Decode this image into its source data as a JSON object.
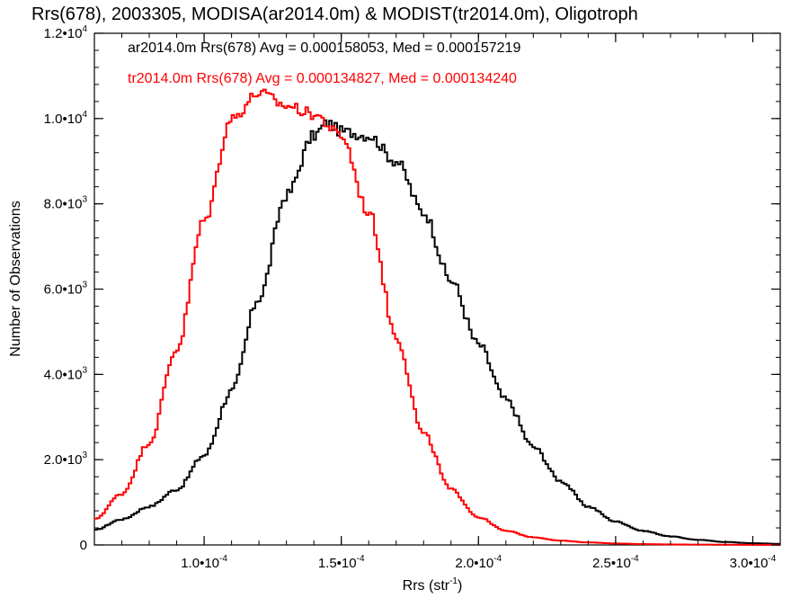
{
  "chart_data": {
    "type": "line",
    "title": "Rrs(678), 2003305, MODISA(ar2014.0m) & MODIST(tr2014.0m), Oligotroph",
    "xlabel_main": "Rrs (str",
    "xlabel_sup": "-1",
    "xlabel_close": ")",
    "ylabel": "Number of Observations",
    "xlim": [
      6e-05,
      0.00031
    ],
    "ylim": [
      0,
      12000
    ],
    "x_ticks": [
      {
        "value": 0.0001,
        "mant": "1.0•10",
        "exp": "-4"
      },
      {
        "value": 0.00015,
        "mant": "1.5•10",
        "exp": "-4"
      },
      {
        "value": 0.0002,
        "mant": "2.0•10",
        "exp": "-4"
      },
      {
        "value": 0.00025,
        "mant": "2.5•10",
        "exp": "-4"
      },
      {
        "value": 0.0003,
        "mant": "3.0•10",
        "exp": "-4"
      }
    ],
    "y_ticks": [
      {
        "value": 0,
        "mant": "0",
        "exp": ""
      },
      {
        "value": 2000,
        "mant": "2.0•10",
        "exp": "3"
      },
      {
        "value": 4000,
        "mant": "4.0•10",
        "exp": "3"
      },
      {
        "value": 6000,
        "mant": "6.0•10",
        "exp": "3"
      },
      {
        "value": 8000,
        "mant": "8.0•10",
        "exp": "3"
      },
      {
        "value": 10000,
        "mant": "1.0•10",
        "exp": "4"
      },
      {
        "value": 12000,
        "mant": "1.2•10",
        "exp": "4"
      }
    ],
    "series": [
      {
        "annotation": "ar2014.0m Rrs(678) Avg = 0.000158053, Med = 0.000157219",
        "color": "#000000",
        "x": [
          6e-05,
          7e-05,
          8e-05,
          9e-05,
          0.0001,
          0.00011,
          0.00012,
          0.00013,
          0.00014,
          0.000145,
          0.00015,
          0.00016,
          0.00017,
          0.00018,
          0.00019,
          0.0002,
          0.00021,
          0.00022,
          0.00023,
          0.00024,
          0.00025,
          0.00026,
          0.00027,
          0.00028,
          0.00029,
          0.0003,
          0.00031
        ],
        "y": [
          350,
          600,
          900,
          1300,
          2100,
          3600,
          5800,
          8200,
          9600,
          9900,
          9700,
          9600,
          9000,
          7800,
          6200,
          4700,
          3400,
          2300,
          1500,
          900,
          550,
          330,
          200,
          120,
          70,
          40,
          25
        ]
      },
      {
        "annotation": "tr2014.0m Rrs(678) Avg = 0.000134827, Med = 0.000134240",
        "color": "#ff0000",
        "x": [
          6e-05,
          7e-05,
          8e-05,
          9e-05,
          0.0001,
          0.00011,
          0.00012,
          0.00013,
          0.00014,
          0.00015,
          0.00016,
          0.00017,
          0.00018,
          0.00019,
          0.0002,
          0.00021,
          0.00022,
          0.00023,
          0.00024,
          0.00025,
          0.00026,
          0.00027,
          0.00028,
          0.00029,
          0.0003,
          0.00031
        ],
        "y": [
          600,
          1200,
          2400,
          4600,
          7600,
          10000,
          10600,
          10300,
          10100,
          9600,
          7800,
          4900,
          2600,
          1300,
          650,
          330,
          180,
          100,
          60,
          35,
          20,
          12,
          8,
          5,
          3,
          2
        ]
      }
    ],
    "grid": false,
    "legend": "none"
  }
}
